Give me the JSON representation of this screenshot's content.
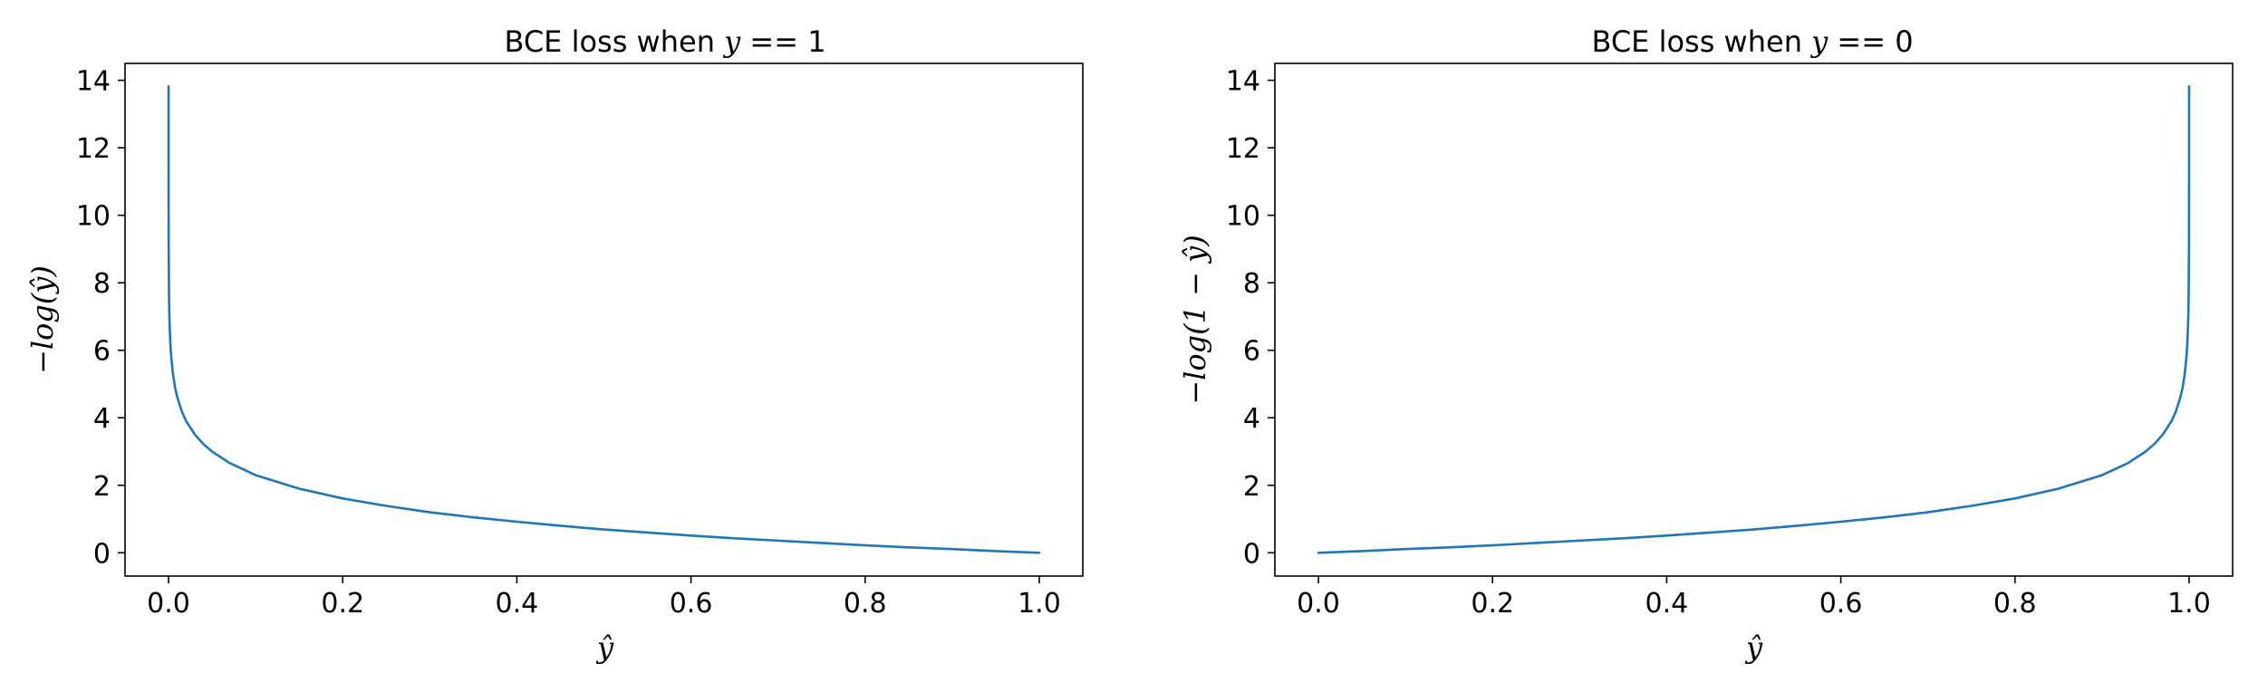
{
  "chart_data": [
    {
      "type": "line",
      "title": "BCE loss when y == 1",
      "title_parts": {
        "prefix": "BCE loss when ",
        "var": "y",
        "suffix": " == 1"
      },
      "xlabel": "ŷ",
      "ylabel": "−log(ŷ)",
      "xlim": [
        -0.05,
        1.05
      ],
      "ylim": [
        -0.69,
        14.5
      ],
      "xticks": [
        0.0,
        0.2,
        0.4,
        0.6,
        0.8,
        1.0
      ],
      "xtick_labels": [
        "0.0",
        "0.2",
        "0.4",
        "0.6",
        "0.8",
        "1.0"
      ],
      "yticks": [
        0,
        2,
        4,
        6,
        8,
        10,
        12,
        14
      ],
      "ytick_labels": [
        "0",
        "2",
        "4",
        "6",
        "8",
        "10",
        "12",
        "14"
      ],
      "grid": false,
      "series": [
        {
          "color": "#1f77b4",
          "x": [
            1e-06,
            1e-05,
            0.0001,
            0.0005,
            0.001,
            0.002,
            0.003,
            0.005,
            0.0075,
            0.01,
            0.015,
            0.02,
            0.03,
            0.04,
            0.05,
            0.07,
            0.1,
            0.15,
            0.2,
            0.25,
            0.3,
            0.35,
            0.4,
            0.45,
            0.5,
            0.55,
            0.6,
            0.65,
            0.7,
            0.75,
            0.8,
            0.85,
            0.9,
            0.95,
            1.0
          ],
          "values": [
            13.82,
            11.51,
            9.21,
            7.6,
            6.91,
            6.21,
            5.81,
            5.3,
            4.89,
            4.61,
            4.2,
            3.91,
            3.51,
            3.22,
            3.0,
            2.66,
            2.3,
            1.9,
            1.61,
            1.39,
            1.2,
            1.05,
            0.92,
            0.8,
            0.69,
            0.6,
            0.51,
            0.43,
            0.36,
            0.29,
            0.22,
            0.16,
            0.11,
            0.05,
            0.0
          ]
        }
      ]
    },
    {
      "type": "line",
      "title": "BCE loss when y == 0",
      "title_parts": {
        "prefix": "BCE loss when ",
        "var": "y",
        "suffix": " == 0"
      },
      "xlabel": "ŷ",
      "ylabel": "−log(1 − ŷ)",
      "xlim": [
        -0.05,
        1.05
      ],
      "ylim": [
        -0.69,
        14.5
      ],
      "xticks": [
        0.0,
        0.2,
        0.4,
        0.6,
        0.8,
        1.0
      ],
      "xtick_labels": [
        "0.0",
        "0.2",
        "0.4",
        "0.6",
        "0.8",
        "1.0"
      ],
      "yticks": [
        0,
        2,
        4,
        6,
        8,
        10,
        12,
        14
      ],
      "ytick_labels": [
        "0",
        "2",
        "4",
        "6",
        "8",
        "10",
        "12",
        "14"
      ],
      "grid": false,
      "series": [
        {
          "color": "#1f77b4",
          "x": [
            0.0,
            0.05,
            0.1,
            0.15,
            0.2,
            0.25,
            0.3,
            0.35,
            0.4,
            0.45,
            0.5,
            0.55,
            0.6,
            0.65,
            0.7,
            0.75,
            0.8,
            0.85,
            0.9,
            0.93,
            0.95,
            0.96,
            0.97,
            0.98,
            0.985,
            0.99,
            0.9925,
            0.995,
            0.997,
            0.998,
            0.999,
            0.9995,
            0.9999,
            0.99999,
            0.999999
          ],
          "values": [
            0.0,
            0.05,
            0.11,
            0.16,
            0.22,
            0.29,
            0.36,
            0.43,
            0.51,
            0.6,
            0.69,
            0.8,
            0.92,
            1.05,
            1.2,
            1.39,
            1.61,
            1.9,
            2.3,
            2.66,
            3.0,
            3.22,
            3.51,
            3.91,
            4.2,
            4.61,
            4.89,
            5.3,
            5.81,
            6.21,
            6.91,
            7.6,
            9.21,
            11.51,
            13.82
          ]
        }
      ]
    }
  ]
}
